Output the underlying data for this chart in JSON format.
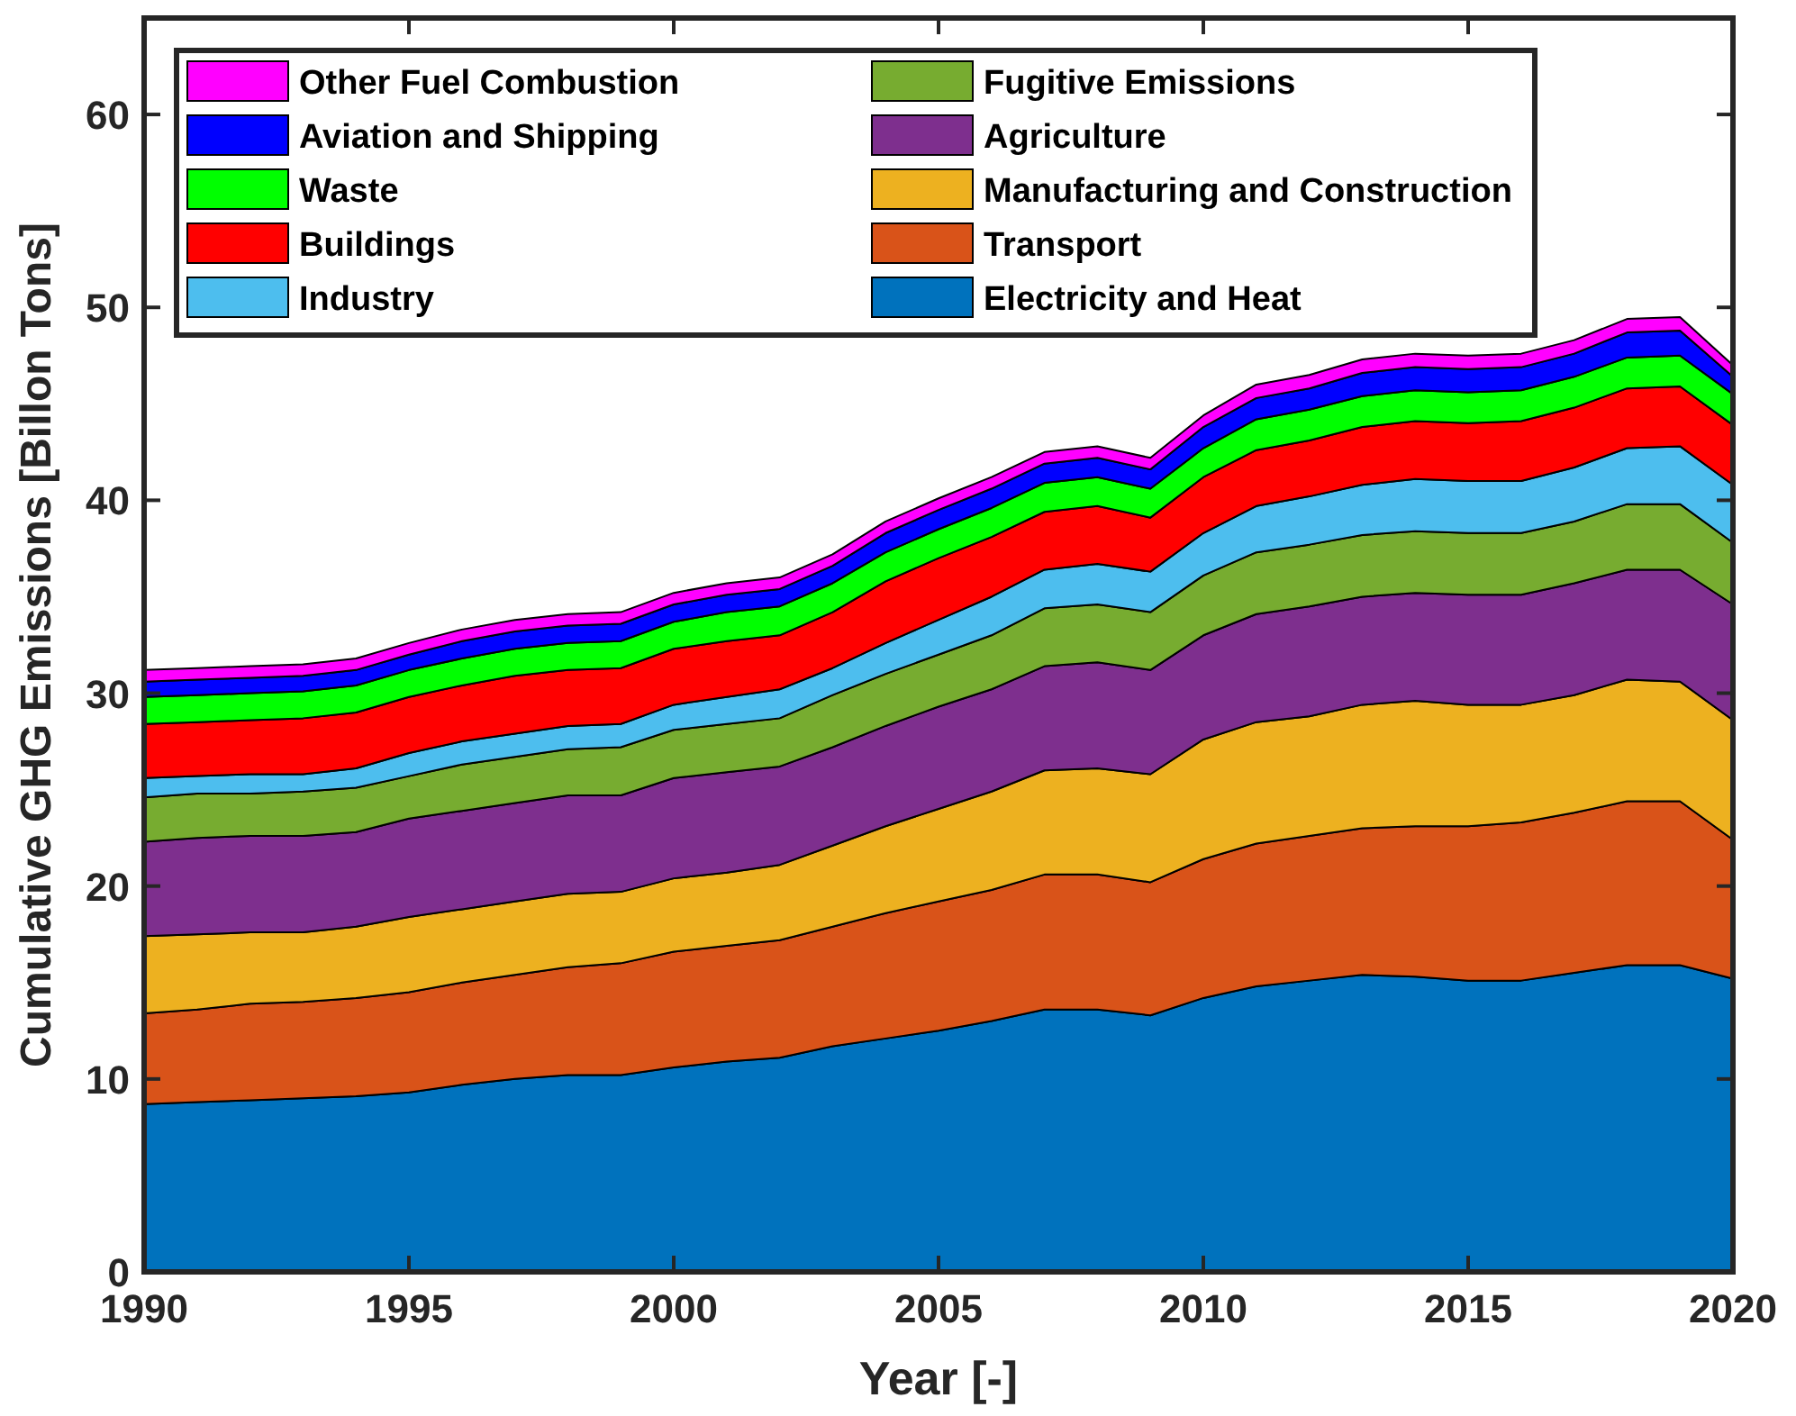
{
  "chart_data": {
    "type": "area",
    "stacked": true,
    "xlabel": "Year [-]",
    "ylabel": "Cumulative GHG Emissions [Billon Tons]",
    "x": [
      1990,
      1991,
      1992,
      1993,
      1994,
      1995,
      1996,
      1997,
      1998,
      1999,
      2000,
      2001,
      2002,
      2003,
      2004,
      2005,
      2006,
      2007,
      2008,
      2009,
      2010,
      2011,
      2012,
      2013,
      2014,
      2015,
      2016,
      2017,
      2018,
      2019,
      2020
    ],
    "xlim": [
      1990,
      2020
    ],
    "xticks": [
      1990,
      1995,
      2000,
      2005,
      2010,
      2015,
      2020
    ],
    "ylim": [
      0,
      65
    ],
    "yticks": [
      0,
      10,
      20,
      30,
      40,
      50,
      60
    ],
    "legend": "top left",
    "grid": false,
    "series": [
      {
        "name": "Electricity and Heat",
        "color": "#0072bd",
        "values": [
          8.7,
          8.8,
          8.9,
          9.0,
          9.1,
          9.3,
          9.7,
          10.0,
          10.2,
          10.2,
          10.6,
          10.9,
          11.1,
          11.7,
          12.1,
          12.5,
          13.0,
          13.6,
          13.6,
          13.3,
          14.2,
          14.8,
          15.1,
          15.4,
          15.3,
          15.1,
          15.1,
          15.5,
          15.9,
          15.9,
          15.2
        ]
      },
      {
        "name": "Transport",
        "color": "#d95319",
        "values": [
          4.7,
          4.8,
          5.0,
          5.0,
          5.1,
          5.2,
          5.3,
          5.4,
          5.6,
          5.8,
          6.0,
          6.0,
          6.1,
          6.2,
          6.5,
          6.7,
          6.8,
          7.0,
          7.0,
          6.9,
          7.2,
          7.4,
          7.5,
          7.6,
          7.8,
          8.0,
          8.2,
          8.3,
          8.5,
          8.5,
          7.2
        ]
      },
      {
        "name": "Manufacturing and Construction",
        "color": "#edb120",
        "values": [
          4.0,
          3.9,
          3.7,
          3.6,
          3.7,
          3.9,
          3.8,
          3.8,
          3.8,
          3.7,
          3.8,
          3.8,
          3.9,
          4.2,
          4.5,
          4.8,
          5.1,
          5.4,
          5.5,
          5.6,
          6.2,
          6.3,
          6.2,
          6.4,
          6.5,
          6.3,
          6.1,
          6.1,
          6.3,
          6.2,
          6.2
        ]
      },
      {
        "name": "Agriculture",
        "color": "#7e2f8e",
        "values": [
          4.9,
          5.0,
          5.0,
          5.0,
          4.9,
          5.1,
          5.1,
          5.1,
          5.1,
          5.0,
          5.2,
          5.2,
          5.1,
          5.1,
          5.2,
          5.3,
          5.3,
          5.4,
          5.5,
          5.4,
          5.4,
          5.6,
          5.7,
          5.6,
          5.6,
          5.7,
          5.7,
          5.8,
          5.7,
          5.8,
          6.0
        ]
      },
      {
        "name": "Fugitive Emissions",
        "color": "#77ac30",
        "values": [
          2.3,
          2.3,
          2.2,
          2.3,
          2.3,
          2.2,
          2.4,
          2.4,
          2.4,
          2.5,
          2.5,
          2.5,
          2.5,
          2.7,
          2.7,
          2.7,
          2.8,
          3.0,
          3.0,
          3.0,
          3.1,
          3.2,
          3.2,
          3.2,
          3.2,
          3.2,
          3.2,
          3.2,
          3.4,
          3.4,
          3.2
        ]
      },
      {
        "name": "Industry",
        "color": "#4dbeee",
        "values": [
          1.0,
          0.9,
          1.0,
          0.9,
          1.0,
          1.2,
          1.2,
          1.2,
          1.2,
          1.2,
          1.3,
          1.4,
          1.5,
          1.4,
          1.6,
          1.8,
          2.0,
          2.0,
          2.1,
          2.1,
          2.2,
          2.4,
          2.5,
          2.6,
          2.7,
          2.7,
          2.7,
          2.8,
          2.9,
          3.0,
          3.0
        ]
      },
      {
        "name": "Buildings",
        "color": "#ff0000",
        "values": [
          2.8,
          2.8,
          2.8,
          2.9,
          2.9,
          2.9,
          2.9,
          3.0,
          2.9,
          2.9,
          2.9,
          2.9,
          2.8,
          2.9,
          3.2,
          3.2,
          3.1,
          3.0,
          3.0,
          2.8,
          2.9,
          2.9,
          2.9,
          3.0,
          3.0,
          3.0,
          3.1,
          3.1,
          3.1,
          3.1,
          3.1
        ]
      },
      {
        "name": "Waste",
        "color": "#00ff00",
        "values": [
          1.4,
          1.4,
          1.4,
          1.4,
          1.4,
          1.4,
          1.4,
          1.4,
          1.4,
          1.4,
          1.4,
          1.5,
          1.5,
          1.5,
          1.5,
          1.5,
          1.5,
          1.5,
          1.5,
          1.5,
          1.5,
          1.6,
          1.6,
          1.6,
          1.6,
          1.6,
          1.6,
          1.6,
          1.6,
          1.6,
          1.6
        ]
      },
      {
        "name": "Aviation and Shipping",
        "color": "#0000ff",
        "values": [
          0.8,
          0.8,
          0.8,
          0.8,
          0.8,
          0.8,
          0.9,
          0.9,
          0.9,
          0.9,
          0.9,
          0.9,
          0.9,
          0.9,
          1.0,
          1.0,
          1.0,
          1.0,
          1.0,
          1.0,
          1.1,
          1.1,
          1.1,
          1.2,
          1.2,
          1.2,
          1.2,
          1.2,
          1.3,
          1.3,
          0.9
        ]
      },
      {
        "name": "Other Fuel Combustion",
        "color": "#ff00ff",
        "values": [
          0.6,
          0.6,
          0.6,
          0.6,
          0.6,
          0.6,
          0.6,
          0.6,
          0.6,
          0.6,
          0.6,
          0.6,
          0.6,
          0.6,
          0.6,
          0.6,
          0.6,
          0.6,
          0.6,
          0.6,
          0.6,
          0.7,
          0.7,
          0.7,
          0.7,
          0.7,
          0.7,
          0.7,
          0.7,
          0.7,
          0.6
        ]
      }
    ]
  }
}
